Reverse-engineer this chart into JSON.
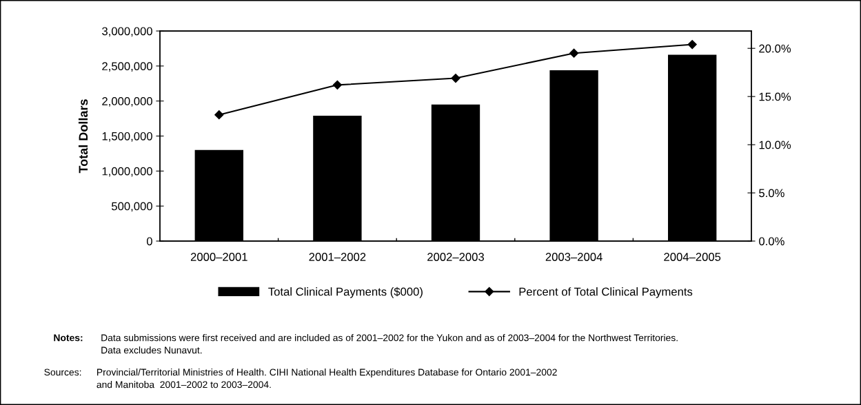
{
  "chart_data": {
    "type": "bar",
    "ylabel": "Total Dollars",
    "categories": [
      "2000–2001",
      "2001–2002",
      "2002–2003",
      "2003–2004",
      "2004–2005"
    ],
    "series": [
      {
        "name": "Total Clinical Payments ($000)",
        "color": "#000000",
        "values": [
          1300000,
          1790000,
          1950000,
          2440000,
          2660000
        ]
      },
      {
        "name": "Percent of Total Clinical Payments",
        "type": "line",
        "axis": "y2",
        "color": "#000000",
        "marker": "diamond",
        "values": [
          13.1,
          16.2,
          16.9,
          19.5,
          20.4
        ]
      }
    ],
    "ylim": [
      0,
      3000000
    ],
    "yticks": [
      {
        "value": 0,
        "label": "0"
      },
      {
        "value": 500000,
        "label": "500,000"
      },
      {
        "value": 1000000,
        "label": "1,000,000"
      },
      {
        "value": 1500000,
        "label": "1,500,000"
      },
      {
        "value": 2000000,
        "label": "2,000,000"
      },
      {
        "value": 2500000,
        "label": "2,500,000"
      },
      {
        "value": 3000000,
        "label": "3,000,000"
      }
    ],
    "y2lim": [
      0,
      21.8
    ],
    "y2ticks": [
      {
        "value": 0,
        "label": "0.0%"
      },
      {
        "value": 5,
        "label": "5.0%"
      },
      {
        "value": 10,
        "label": "10.0%"
      },
      {
        "value": 15,
        "label": "15.0%"
      },
      {
        "value": 20,
        "label": "20.0%"
      }
    ],
    "grid": false,
    "legend": "bottom",
    "annotations": [
      "Notes:",
      "Data submissions were first received and are included as of 2001–2002 for the Yukon and as of 2003–2004 for the Northwest Territories.\nData excludes Nunavut.",
      "Sources:",
      "Provincial/Territorial Ministries of Health. CIHI National Health Expenditures Database for Ontario 2001–2002\nand Manitoba  2001–2002 to 2003–2004."
    ]
  }
}
